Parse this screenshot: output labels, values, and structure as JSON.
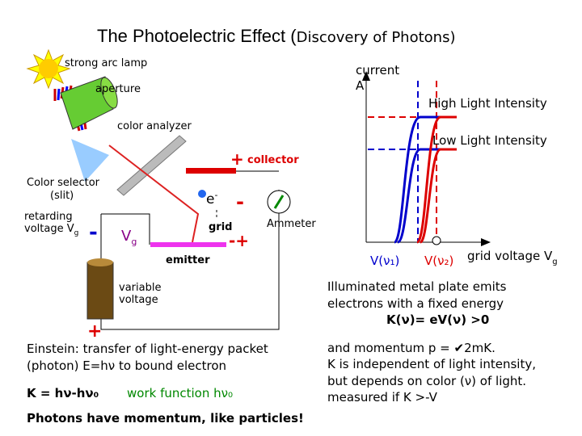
{
  "title": {
    "main": "The Photoelectric Effect (",
    "sub": "Discovery of Photons)"
  },
  "apparatus": {
    "lamp": "strong arc lamp",
    "aperture": "aperture",
    "analyzer": "color analyzer",
    "collector_sign": "+",
    "collector": "collector",
    "selector_1": "Color selector",
    "selector_2": "(slit)",
    "retarding_1": "retarding",
    "retarding_2": "voltage V",
    "retarding_sub": "g",
    "minus_left": "-",
    "vg": "V",
    "vg_sub": "g",
    "electron": "e",
    "electron_sup": "-",
    "minus_collector": "-",
    "grid": "grid",
    "minus_plus": "-+",
    "ammeter": "Ammeter",
    "emitter": "emitter",
    "variable_1": "variable",
    "variable_2": "voltage",
    "plus_bottom": "+"
  },
  "graph": {
    "current": "current",
    "current_unit": "A",
    "high": "High Light Intensity",
    "low": "Low Light Intensity",
    "v1": "V(ν₁)",
    "v2": "V(ν₂)",
    "xlabel": "grid voltage V",
    "xlabel_sub": "g"
  },
  "einstein": {
    "line1": "Einstein: transfer of light-energy packet",
    "line2": "(photon) E=hν to bound electron",
    "formula": "K = hν-hν₀",
    "work": "work function hν₀",
    "momentum": "Photons have momentum, like particles!"
  },
  "explanation": {
    "line1": "Illuminated metal plate emits",
    "line2": "electrons with a fixed energy",
    "line3": "K(ν)= eV(ν) >0",
    "line4": "and momentum p = ✔2mK.",
    "line5": "K is independent of light intensity,",
    "line6": "but depends on color (ν) of light.",
    "line7": "measured if K >-V"
  }
}
